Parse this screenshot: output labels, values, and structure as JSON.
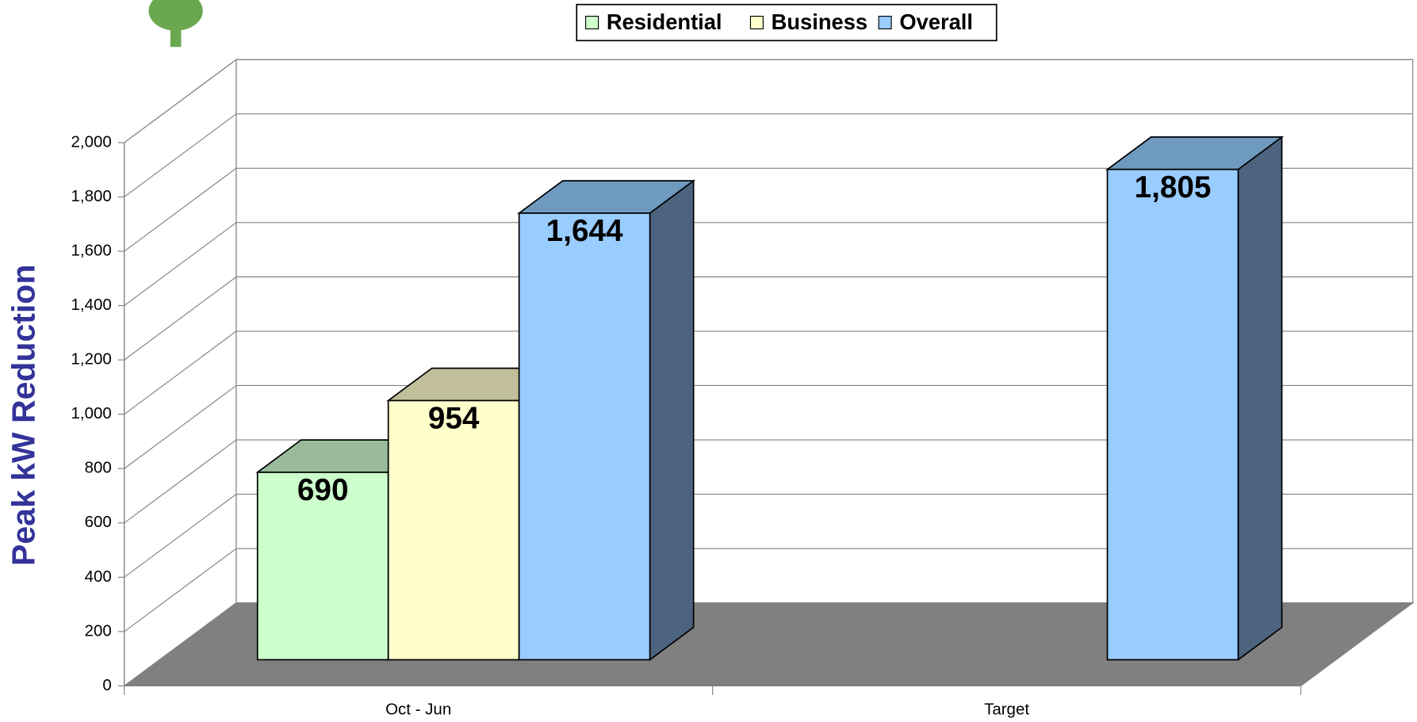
{
  "chart_data": {
    "type": "bar3d",
    "y_label": "Peak kW Reduction",
    "categories": [
      "Oct - Jun",
      "Target"
    ],
    "series": [
      {
        "name": "Residential",
        "color": "#ccffcc",
        "top_color": "#99bb99",
        "side_color": "#6f8f6f",
        "values": [
          690,
          null
        ],
        "value_labels": [
          "690",
          null
        ]
      },
      {
        "name": "Business",
        "color": "#ffffcc",
        "top_color": "#c0bf99",
        "side_color": "#8f8f6f",
        "values": [
          954,
          null
        ],
        "value_labels": [
          "954",
          null
        ]
      },
      {
        "name": "Overall",
        "color": "#99ccff",
        "top_color": "#6f9ac0",
        "side_color": "#4d6480",
        "values": [
          1644,
          1805
        ],
        "value_labels": [
          "1,644",
          "1,805"
        ]
      }
    ],
    "ylim": [
      0,
      2000
    ],
    "yticks": [
      0,
      200,
      400,
      600,
      800,
      {
        "value": 1000,
        "label": "1,000"
      },
      {
        "value": 1200,
        "label": "1,200"
      },
      {
        "value": 1400,
        "label": "1,400"
      },
      {
        "value": 1600,
        "label": "1,600"
      },
      {
        "value": 1800,
        "label": "1,800"
      },
      {
        "value": 2000,
        "label": "2,000"
      }
    ],
    "grid": true,
    "legend": "top"
  }
}
